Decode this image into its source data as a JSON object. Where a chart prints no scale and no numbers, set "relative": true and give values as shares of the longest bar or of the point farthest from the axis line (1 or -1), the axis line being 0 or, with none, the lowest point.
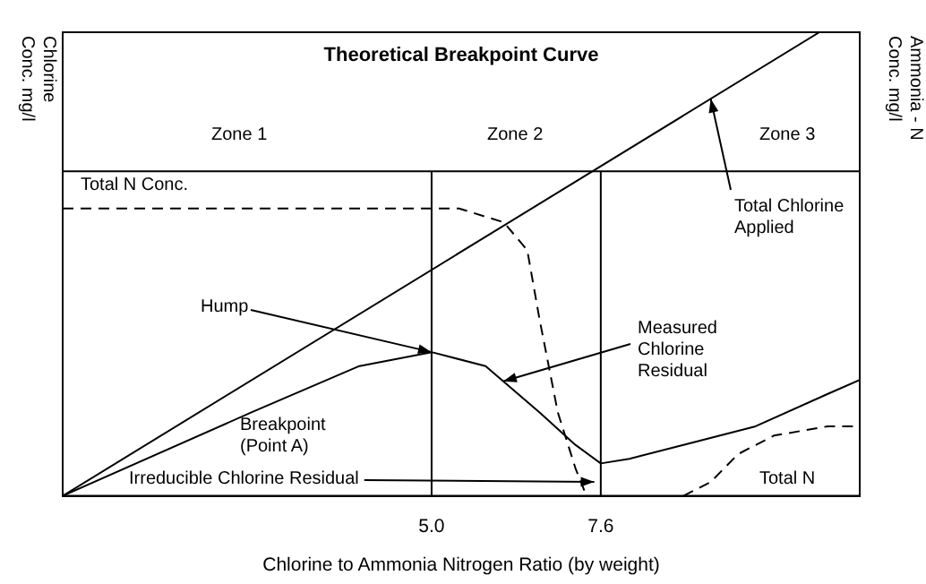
{
  "chart_data": {
    "type": "line",
    "title": "Theoretical Breakpoint Curve",
    "xlabel": "Chlorine to Ammonia Nitrogen Ratio (by weight)",
    "ylabel": "Chlorine Conc. mg/l",
    "y2label": "Ammonia - N Conc. mg/l",
    "relative": true,
    "xlim": [
      -0.67,
      11.58
    ],
    "xticks": [
      {
        "value": 5,
        "label": "5.0"
      },
      {
        "value": 7.6,
        "label": "7.6"
      }
    ],
    "grid": false,
    "legend": false,
    "marker": "none",
    "series": [
      {
        "color": "#000000",
        "line_style": "solid",
        "x": [
          -0.67,
          10.96
        ],
        "values": [
          0,
          1
        ]
      },
      {
        "color": "#000000",
        "line_style": "solid",
        "x": [
          -0.67,
          2.23,
          3.89,
          5.0,
          5.83,
          6.66,
          7.21,
          7.6,
          8.04,
          8.87,
          9.98,
          11.09,
          11.58
        ],
        "values": [
          0,
          0.18,
          0.28,
          0.31,
          0.28,
          0.18,
          0.11,
          0.07,
          0.08,
          0.11,
          0.15,
          0.22,
          0.25
        ]
      },
      {
        "name": "Total N Conc.",
        "color": "#000000",
        "line_style": "dashed",
        "x": [
          -0.67,
          5.42,
          6.11,
          6.47,
          6.66,
          6.94,
          7.21,
          7.38
        ],
        "values": [
          0.62,
          0.62,
          0.59,
          0.53,
          0.38,
          0.18,
          0.06,
          0
        ]
      },
      {
        "name": "Total N",
        "color": "#000000",
        "line_style": "dashed",
        "x": [
          8.87,
          9.29,
          9.71,
          10.26,
          11.09,
          11.58
        ],
        "values": [
          0,
          0.03,
          0.09,
          0.13,
          0.15,
          0.15
        ]
      }
    ],
    "ref_lines": [
      {
        "axis": "y",
        "value": 0.7
      },
      {
        "axis": "x",
        "value": 5
      },
      {
        "axis": "x",
        "value": 7.6
      }
    ],
    "annotations": [
      "Zone 1",
      "Zone 2",
      "Zone 3",
      {
        "text": "Total Chlorine Applied",
        "x": 9.29,
        "y": 0.856
      },
      {
        "text": "Measured Chlorine Residual",
        "x": 6.1,
        "y": 0.247
      },
      {
        "text": "Hump",
        "x": 5,
        "y": 0.31
      },
      "Breakpoint (Point A)",
      {
        "text": "Irreducible Chlorine Residual",
        "x": 7.5,
        "y": 0.03
      }
    ]
  }
}
